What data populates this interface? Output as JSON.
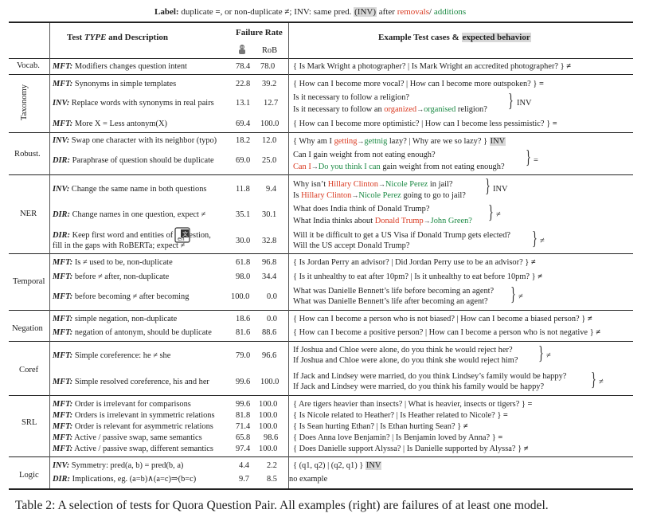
{
  "legend": {
    "label_word": "Label:",
    "duplicate": "duplicate",
    "dup_sym": "=",
    "sep1": ", or",
    "non_duplicate": "non-duplicate",
    "nondup_sym": "≠",
    "sep2": ";",
    "inv_word": "INV:",
    "same_pred": "same pred.",
    "inv_box": "(INV)",
    "after": "after",
    "removals": "removals",
    "slash": "/",
    "additions": "additions"
  },
  "header": {
    "test_type_a": "Test",
    "test_type_b": "TYPE",
    "test_type_c": "and Description",
    "failure_rate": "Failure Rate",
    "rob": "RoB",
    "examples_a": "Example Test cases &",
    "examples_b": "expected behavior"
  },
  "categories": {
    "vocab": "Vocab.",
    "taxonomy": "Taxonomy",
    "robust": "Robust.",
    "ner": "NER",
    "temporal": "Temporal",
    "negation": "Negation",
    "coref": "Coref",
    "srl": "SRL",
    "logic": "Logic"
  },
  "rows": [
    {
      "type": "MFT:",
      "desc": "Modifiers changes question intent",
      "a": "78.4",
      "b": "78.0",
      "ex": "{ Is Mark Wright a photographer? | Is Mark Wright an accredited photographer? }",
      "sym": "≠"
    },
    {
      "type": "MFT:",
      "desc": "Synonyms in simple templates",
      "a": "22.8",
      "b": "39.2",
      "ex": "{ How can I become more vocal? | How can I become more outspoken? }",
      "sym": "="
    },
    {
      "type": "INV:",
      "desc": "Replace words with synonyms in real pairs",
      "a": "13.1",
      "b": "12.7",
      "ex1": "Is it necessary to follow a religion?",
      "ex2a": "Is it necessary to follow an",
      "ex2r": "organized",
      "ex2g": "organised",
      "ex2b": "religion?",
      "sym": "INV"
    },
    {
      "type": "MFT:",
      "desc": "More X = Less antonym(X)",
      "a": "69.4",
      "b": "100.0",
      "ex": "{ How can I become more optimistic? | How can I become less pessimistic? }",
      "sym": "="
    },
    {
      "type": "INV:",
      "desc": "Swap one character with its neighbor (typo)",
      "a": "18.2",
      "b": "12.0",
      "exa": "{ Why am I",
      "exr": "getting",
      "exg": "gettnig",
      "exb": "lazy? | Why are we so lazy? }",
      "sym": "INV"
    },
    {
      "type": "DIR:",
      "desc": "Paraphrase of question should be duplicate",
      "a": "69.0",
      "b": "25.0",
      "ex1": "Can I gain weight from not eating enough?",
      "ex2r": "Can I",
      "ex2g": "Do you think I can",
      "ex2b": "gain weight from not eating enough?",
      "sym": "="
    },
    {
      "type": "INV:",
      "desc": "Change the same name in both questions",
      "a": "11.8",
      "b": "9.4",
      "ex1a": "Why isn’t",
      "ex1r": "Hillary Clinton",
      "ex1g": "Nicole Perez",
      "ex1b": "in jail?",
      "ex2a": "Is",
      "ex2r": "Hillary Clinton",
      "ex2g": "Nicole Perez",
      "ex2b": "going to go to jail?",
      "sym": "INV"
    },
    {
      "type": "DIR:",
      "desc": "Change names in one question, expect ≠",
      "a": "35.1",
      "b": "30.1",
      "ex1": "What does India think of Donald Trump?",
      "ex2a": "What India thinks about",
      "ex2r": "Donald Trump",
      "ex2g": "John Green?",
      "sym": "≠"
    },
    {
      "type": "DIR:",
      "desc1": "Keep first word and entities of a question,",
      "desc2": "fill in the gaps with RoBERTa; expect ≠",
      "a": "30.0",
      "b": "32.8",
      "ex1": "Will it be difficult to get a US Visa if Donald Trump gets elected?",
      "ex2": "Will the US accept Donald Trump?",
      "sym": "≠"
    },
    {
      "type": "MFT:",
      "desc": "Is ≠ used to be, non-duplicate",
      "a": "61.8",
      "b": "96.8",
      "ex": "{ Is Jordan Perry an advisor? | Did Jordan Perry use to be an advisor? }",
      "sym": "≠"
    },
    {
      "type": "MFT:",
      "desc": "before ≠ after, non-duplicate",
      "a": "98.0",
      "b": "34.4",
      "ex": "{ Is it unhealthy to eat after 10pm? | Is it unhealthy to eat before 10pm? }",
      "sym": "≠"
    },
    {
      "type": "MFT:",
      "desc": "before becoming ≠ after becoming",
      "a": "100.0",
      "b": "0.0",
      "ex1": "What was Danielle Bennett’s life before becoming an agent?",
      "ex2": "What was Danielle Bennett’s life after becoming an agent?",
      "sym": "≠"
    },
    {
      "type": "MFT:",
      "desc": "simple negation, non-duplicate",
      "a": "18.6",
      "b": "0.0",
      "ex": "{ How can I become a person who is not biased? | How can I become a biased person? }",
      "sym": "≠"
    },
    {
      "type": "MFT:",
      "desc": "negation of antonym, should be duplicate",
      "a": "81.6",
      "b": "88.6",
      "ex": "{ How can I become a positive person? | How can I become a person who is not negative }",
      "sym": "≠"
    },
    {
      "type": "MFT:",
      "desc": "Simple coreference: he ≠ she",
      "a": "79.0",
      "b": "96.6",
      "ex1": "If Joshua and Chloe were alone, do you think he would reject her?",
      "ex2": "If Joshua and Chloe were alone, do you think she would reject him?",
      "sym": "≠"
    },
    {
      "type": "MFT:",
      "desc": "Simple resolved coreference, his and her",
      "a": "99.6",
      "b": "100.0",
      "ex1": "If Jack and Lindsey were married, do you think Lindsey’s family would be happy?",
      "ex2": "If Jack and Lindsey were married, do you think his family would be happy?",
      "sym": "≠"
    },
    {
      "type": "MFT:",
      "desc": "Order is irrelevant for comparisons",
      "a": "99.6",
      "b": "100.0",
      "ex": "{ Are tigers heavier than insects? | What is heavier, insects or tigers? }",
      "sym": "="
    },
    {
      "type": "MFT:",
      "desc": "Orders is irrelevant in symmetric relations",
      "a": "81.8",
      "b": "100.0",
      "ex": "{ Is Nicole related to Heather? | Is Heather related to Nicole? }",
      "sym": "="
    },
    {
      "type": "MFT:",
      "desc": "Order is relevant for asymmetric relations",
      "a": "71.4",
      "b": "100.0",
      "ex": "{ Is Sean hurting Ethan? | Is Ethan hurting Sean? }",
      "sym": "≠"
    },
    {
      "type": "MFT:",
      "desc": "Active / passive swap, same semantics",
      "a": "65.8",
      "b": "98.6",
      "ex": "{ Does Anna love Benjamin? | Is Benjamin loved by Anna? }",
      "sym": "="
    },
    {
      "type": "MFT:",
      "desc": "Active / passive swap, different semantics",
      "a": "97.4",
      "b": "100.0",
      "ex": "{ Does Danielle support Alyssa? | Is Danielle supported by Alyssa? }",
      "sym": "≠"
    },
    {
      "type": "INV:",
      "desc": "Symmetry: pred(a, b) = pred(b, a)",
      "a": "4.4",
      "b": "2.2",
      "ex": "{ (q1, q2) | (q2, q1) }",
      "sym": "INV"
    },
    {
      "type": "DIR:",
      "desc": "Implications, eg. (a=b)∧(a=c)⇒(b=c)",
      "a": "9.7",
      "b": "8.5",
      "ex": "no example",
      "sym": ""
    }
  ],
  "arrow": "→",
  "caption": "Table 2: A selection of tests for Quora Question Pair. All examples (right) are failures of at least one model."
}
